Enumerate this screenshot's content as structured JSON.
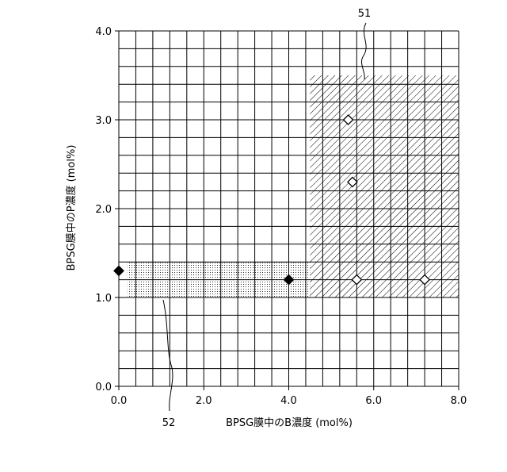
{
  "chart_data": {
    "type": "scatter",
    "xlabel": "BPSG膜中のB濃度 (mol%)",
    "ylabel": "BPSG膜中のP濃度 (mol%)",
    "xlim": [
      0.0,
      8.0
    ],
    "ylim": [
      0.0,
      4.0
    ],
    "x_ticks": [
      "0.0",
      "2.0",
      "4.0",
      "6.0",
      "8.0"
    ],
    "y_ticks": [
      "0.0",
      "1.0",
      "2.0",
      "3.0",
      "4.0"
    ],
    "x_tick_values": [
      0,
      2,
      4,
      6,
      8
    ],
    "y_tick_values": [
      0,
      1,
      2,
      3,
      4
    ],
    "grid": true,
    "grid_step": {
      "x": 0.4,
      "y": 0.2
    },
    "regions": [
      {
        "label": "51",
        "pattern": "diagonal-hatch",
        "x": [
          4.5,
          8.0
        ],
        "y": [
          1.0,
          3.5
        ]
      },
      {
        "label": "52",
        "pattern": "dots",
        "x": [
          0.2,
          4.5
        ],
        "y": [
          1.0,
          1.4
        ]
      }
    ],
    "series": [
      {
        "marker": "filled-diamond",
        "points": [
          [
            0.0,
            1.3
          ],
          [
            4.0,
            1.2
          ]
        ]
      },
      {
        "marker": "open-diamond",
        "points": [
          [
            5.4,
            3.0
          ],
          [
            5.5,
            2.3
          ],
          [
            5.6,
            1.2
          ],
          [
            7.2,
            1.2
          ]
        ]
      }
    ],
    "colors": {
      "ink": "#000000",
      "grid": "#000000",
      "background": "#ffffff"
    }
  }
}
